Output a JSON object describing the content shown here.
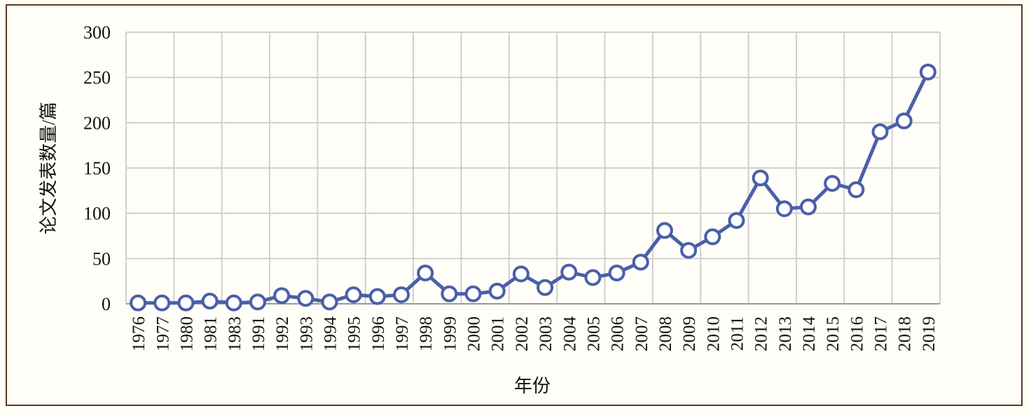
{
  "chart_data": {
    "type": "line",
    "title": "",
    "xlabel": "年份",
    "ylabel": "论文发表数量/篇",
    "ylim": [
      0,
      300
    ],
    "yticks": [
      0,
      50,
      100,
      150,
      200,
      250,
      300
    ],
    "grid": true,
    "categories": [
      "1976",
      "1977",
      "1980",
      "1981",
      "1983",
      "1991",
      "1992",
      "1993",
      "1994",
      "1995",
      "1996",
      "1997",
      "1998",
      "1999",
      "2000",
      "2001",
      "2002",
      "2003",
      "2004",
      "2005",
      "2006",
      "2007",
      "2008",
      "2009",
      "2010",
      "2011",
      "2012",
      "2013",
      "2014",
      "2015",
      "2016",
      "2017",
      "2018",
      "2019"
    ],
    "values": [
      1,
      1,
      1,
      3,
      1,
      2,
      9,
      6,
      2,
      10,
      8,
      10,
      34,
      11,
      11,
      14,
      33,
      18,
      35,
      29,
      34,
      46,
      81,
      59,
      74,
      92,
      139,
      105,
      107,
      133,
      126,
      190,
      202,
      256
    ],
    "series_color": "#4a5fa8",
    "marker": "hollow-circle"
  }
}
